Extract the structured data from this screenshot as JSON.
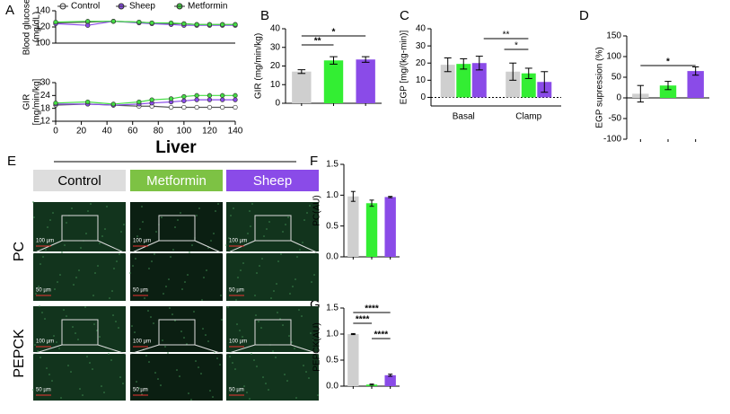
{
  "panel_labels": [
    "A",
    "B",
    "C",
    "D",
    "E",
    "F",
    "G"
  ],
  "chart_data": [
    {
      "type": "line",
      "ylabel": [
        "Blood glucose",
        "(mg/dL)"
      ],
      "x": [
        0,
        25,
        45,
        65,
        75,
        90,
        100,
        110,
        120,
        130,
        140
      ],
      "xlim": [
        0,
        140
      ],
      "ylim": [
        100,
        140
      ],
      "yticks": [
        100,
        120,
        140
      ],
      "legend": "top",
      "series": [
        {
          "name": "Control",
          "color": "#ffffff",
          "values": [
            125,
            126,
            127,
            126,
            125,
            124,
            124,
            123,
            123,
            123,
            123
          ]
        },
        {
          "name": "Sheep",
          "color": "#8a4be8",
          "values": [
            124,
            122,
            127,
            125,
            124,
            123,
            122,
            122,
            122,
            122,
            122
          ]
        },
        {
          "name": "Metformin",
          "color": "#44dd44",
          "values": [
            126,
            127,
            127,
            126,
            125,
            125,
            124,
            123,
            123,
            123,
            123
          ]
        }
      ]
    },
    {
      "type": "line",
      "ylabel": [
        "GIR",
        "[mg/min/kg]"
      ],
      "x": [
        0,
        25,
        45,
        65,
        75,
        90,
        100,
        110,
        120,
        130,
        140
      ],
      "xlim": [
        0,
        140
      ],
      "ylim": [
        12,
        30
      ],
      "yticks": [
        12,
        18,
        24,
        30
      ],
      "xticks": [
        0,
        20,
        40,
        60,
        80,
        100,
        120,
        140
      ],
      "series": [
        {
          "name": "Control",
          "color": "#ffffff",
          "values": [
            19.5,
            20,
            19.5,
            19,
            19,
            18.5,
            18.5,
            18.5,
            18.5,
            18.5,
            18.5
          ]
        },
        {
          "name": "Sheep",
          "color": "#8a4be8",
          "values": [
            20,
            20,
            19.5,
            20,
            20.5,
            21,
            21.5,
            22,
            22,
            22,
            22
          ]
        },
        {
          "name": "Metformin",
          "color": "#44dd44",
          "values": [
            20.5,
            21,
            20,
            21,
            22,
            22.5,
            23.5,
            24,
            24,
            24,
            24
          ]
        }
      ]
    },
    {
      "type": "bar",
      "ylabel": "GIR (mg/min/kg)",
      "categories": [
        null,
        null,
        null
      ],
      "values": [
        17,
        23,
        23.5
      ],
      "errors": [
        1,
        2,
        1.5
      ],
      "colors": [
        "#cfcfcf",
        "#33ee33",
        "#8a4be8"
      ],
      "ylim": [
        0,
        40
      ],
      "yticks": [
        0,
        10,
        20,
        30,
        40
      ],
      "annotations": [
        "**",
        "*"
      ]
    },
    {
      "type": "grouped_bar",
      "ylabel": "EGP [mg/(kg-min)]",
      "categories": [
        "Basal",
        "Clamp"
      ],
      "ylim": [
        -5,
        40
      ],
      "yticks": [
        0,
        10,
        20,
        30,
        40
      ],
      "series": [
        {
          "name": "Control",
          "color": "#cfcfcf",
          "values": [
            19,
            15
          ],
          "errors": [
            4,
            5
          ]
        },
        {
          "name": "Metformin",
          "color": "#33ee33",
          "values": [
            19.5,
            14
          ],
          "errors": [
            3,
            3
          ]
        },
        {
          "name": "Sheep",
          "color": "#8a4be8",
          "values": [
            20,
            9
          ],
          "errors": [
            4,
            6
          ]
        }
      ],
      "annotations": [
        "**",
        "*"
      ]
    },
    {
      "type": "bar",
      "ylabel": "EGP supression (%)",
      "categories": [
        null,
        null,
        null
      ],
      "values": [
        10,
        30,
        65
      ],
      "errors": [
        20,
        10,
        10
      ],
      "colors": [
        "#cfcfcf",
        "#33ee33",
        "#8a4be8"
      ],
      "ylim": [
        -100,
        150
      ],
      "yticks": [
        -100,
        -50,
        0,
        50,
        100,
        150
      ],
      "annotations": [
        "*"
      ]
    },
    {
      "type": "bar",
      "ylabel": "PC(AU)",
      "categories": [
        null,
        null,
        null
      ],
      "values": [
        0.98,
        0.87,
        0.97
      ],
      "errors": [
        0.08,
        0.05,
        0.01
      ],
      "colors": [
        "#cfcfcf",
        "#33ee33",
        "#8a4be8"
      ],
      "ylim": [
        0,
        1.5
      ],
      "yticks": [
        {
          "value": 0,
          "label": "0.0"
        },
        0.5,
        {
          "value": 1,
          "label": "1.0"
        },
        1.5
      ]
    },
    {
      "type": "bar",
      "ylabel": "PEPCK(AU)",
      "categories": [
        null,
        null,
        null
      ],
      "values": [
        1.0,
        0.03,
        0.21
      ],
      "errors": [
        0.01,
        0.01,
        0.02
      ],
      "colors": [
        "#cfcfcf",
        "#33ee33",
        "#8a4be8"
      ],
      "ylim": [
        0,
        1.5
      ],
      "yticks": [
        {
          "value": 0,
          "label": "0.0"
        },
        0.5,
        {
          "value": 1,
          "label": "1.0"
        },
        1.5
      ],
      "annotations": [
        "****",
        "****",
        "****"
      ]
    }
  ],
  "histology": {
    "title": "Liver",
    "columns": [
      {
        "name": "Control",
        "color": "#dddddd"
      },
      {
        "name": "Metformin",
        "color": "#7dc244"
      },
      {
        "name": "Sheep",
        "color": "#8a4be8"
      }
    ],
    "rows": [
      "PC",
      "PEPCK"
    ],
    "scale_bars": [
      "100 µm",
      "50 µm"
    ]
  }
}
